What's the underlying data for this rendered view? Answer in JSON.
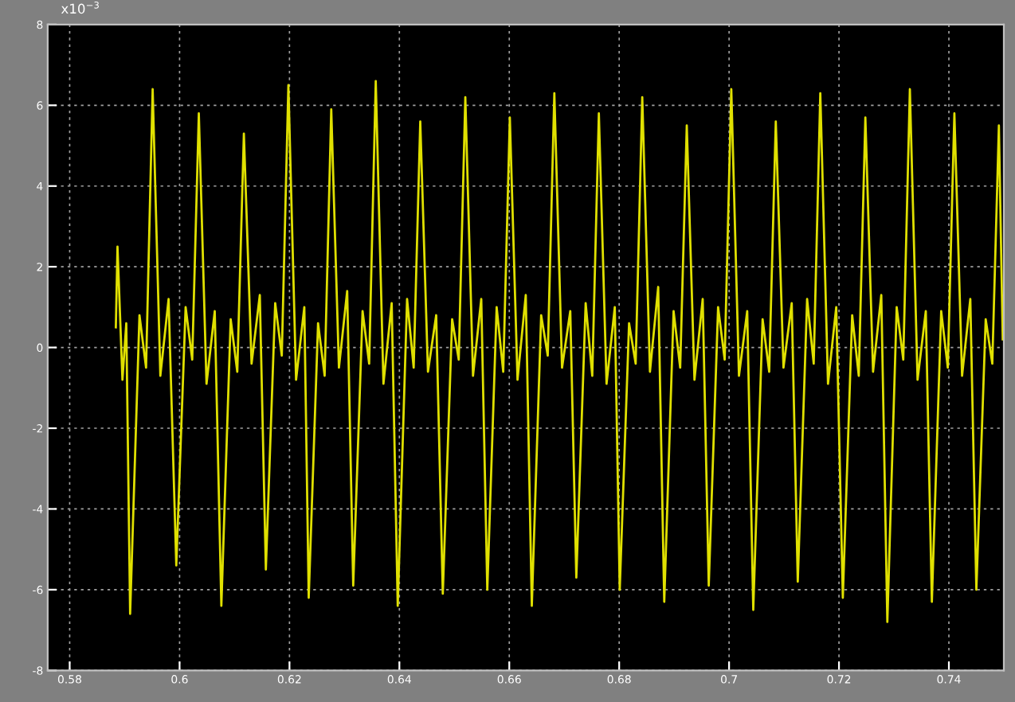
{
  "chart_data": {
    "type": "line",
    "annotations": [
      "x10$^{−3}$"
    ],
    "grid": true,
    "xlim": [
      0.576,
      0.75
    ],
    "ylim": [
      -8,
      8
    ],
    "xticks": [
      0.58,
      0.6,
      0.62,
      0.64,
      0.66,
      0.68,
      0.7,
      0.72,
      0.74
    ],
    "yticks": [
      -8,
      -6,
      -4,
      -2,
      0,
      2,
      4,
      6,
      8
    ],
    "series": [
      {
        "color": "#e0e000",
        "x": [
          0.5884,
          0.5887,
          0.5896,
          0.5903,
          0.591,
          0.5927,
          0.5939,
          0.5951,
          0.5965,
          0.598,
          0.5994,
          0.6011,
          0.6023,
          0.6035,
          0.6049,
          0.6064,
          0.6076,
          0.6093,
          0.6105,
          0.6117,
          0.6131,
          0.6146,
          0.6157,
          0.6174,
          0.6186,
          0.6198,
          0.6212,
          0.6227,
          0.6235,
          0.6252,
          0.6264,
          0.6276,
          0.629,
          0.6305,
          0.6316,
          0.6333,
          0.6345,
          0.6357,
          0.6371,
          0.6386,
          0.6397,
          0.6414,
          0.6426,
          0.6438,
          0.6452,
          0.6467,
          0.6479,
          0.6496,
          0.6508,
          0.652,
          0.6534,
          0.6549,
          0.656,
          0.6577,
          0.6589,
          0.6601,
          0.6615,
          0.663,
          0.6641,
          0.6658,
          0.667,
          0.6682,
          0.6696,
          0.6711,
          0.6722,
          0.6739,
          0.6751,
          0.6763,
          0.6777,
          0.6792,
          0.6801,
          0.6818,
          0.683,
          0.6842,
          0.6856,
          0.6871,
          0.6882,
          0.6899,
          0.6911,
          0.6923,
          0.6937,
          0.6952,
          0.6963,
          0.698,
          0.6992,
          0.7004,
          0.7018,
          0.7033,
          0.7044,
          0.7061,
          0.7073,
          0.7085,
          0.7099,
          0.7114,
          0.7125,
          0.7142,
          0.7154,
          0.7166,
          0.718,
          0.7195,
          0.7207,
          0.7224,
          0.7236,
          0.7248,
          0.7262,
          0.7277,
          0.7288,
          0.7305,
          0.7317,
          0.7329,
          0.7343,
          0.7358,
          0.7369,
          0.7386,
          0.7398,
          0.741,
          0.7424,
          0.7439,
          0.745,
          0.7467,
          0.7479,
          0.7491,
          0.7498
        ],
        "values": [
          0.5,
          2.5,
          -0.8,
          0.6,
          -6.6,
          0.8,
          -0.5,
          6.4,
          -0.7,
          1.2,
          -5.4,
          1.0,
          -0.3,
          5.8,
          -0.9,
          0.9,
          -6.4,
          0.7,
          -0.6,
          5.3,
          -0.4,
          1.3,
          -5.5,
          1.1,
          -0.2,
          6.5,
          -0.8,
          1.0,
          -6.2,
          0.6,
          -0.7,
          5.9,
          -0.5,
          1.4,
          -5.9,
          0.9,
          -0.4,
          6.6,
          -0.9,
          1.1,
          -6.4,
          1.2,
          -0.5,
          5.6,
          -0.6,
          0.8,
          -6.1,
          0.7,
          -0.3,
          6.2,
          -0.7,
          1.2,
          -6.0,
          1.0,
          -0.6,
          5.7,
          -0.8,
          1.3,
          -6.4,
          0.8,
          -0.2,
          6.3,
          -0.5,
          0.9,
          -5.7,
          1.1,
          -0.7,
          5.8,
          -0.9,
          1.0,
          -6.0,
          0.6,
          -0.4,
          6.2,
          -0.6,
          1.5,
          -6.3,
          0.9,
          -0.5,
          5.5,
          -0.8,
          1.2,
          -5.9,
          1.0,
          -0.3,
          6.4,
          -0.7,
          0.9,
          -6.5,
          0.7,
          -0.6,
          5.6,
          -0.5,
          1.1,
          -5.8,
          1.2,
          -0.4,
          6.3,
          -0.9,
          1.0,
          -6.2,
          0.8,
          -0.7,
          5.7,
          -0.6,
          1.3,
          -6.8,
          1.0,
          -0.3,
          6.4,
          -0.8,
          0.9,
          -6.3,
          0.9,
          -0.5,
          5.8,
          -0.7,
          1.2,
          -6.0,
          0.7,
          -0.4,
          5.5,
          0.2
        ]
      }
    ]
  }
}
